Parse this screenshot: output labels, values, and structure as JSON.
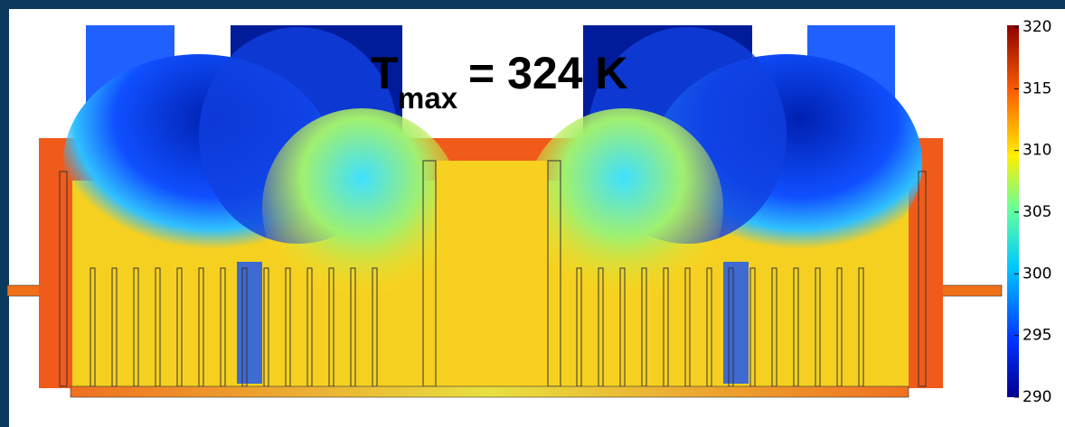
{
  "annotation": {
    "symbol": "T",
    "subscript": "max",
    "text": "= 324 K"
  },
  "colorbar": {
    "lim": [
      290,
      320
    ],
    "ticks": [
      290,
      295,
      300,
      305,
      310,
      315,
      320
    ]
  }
}
